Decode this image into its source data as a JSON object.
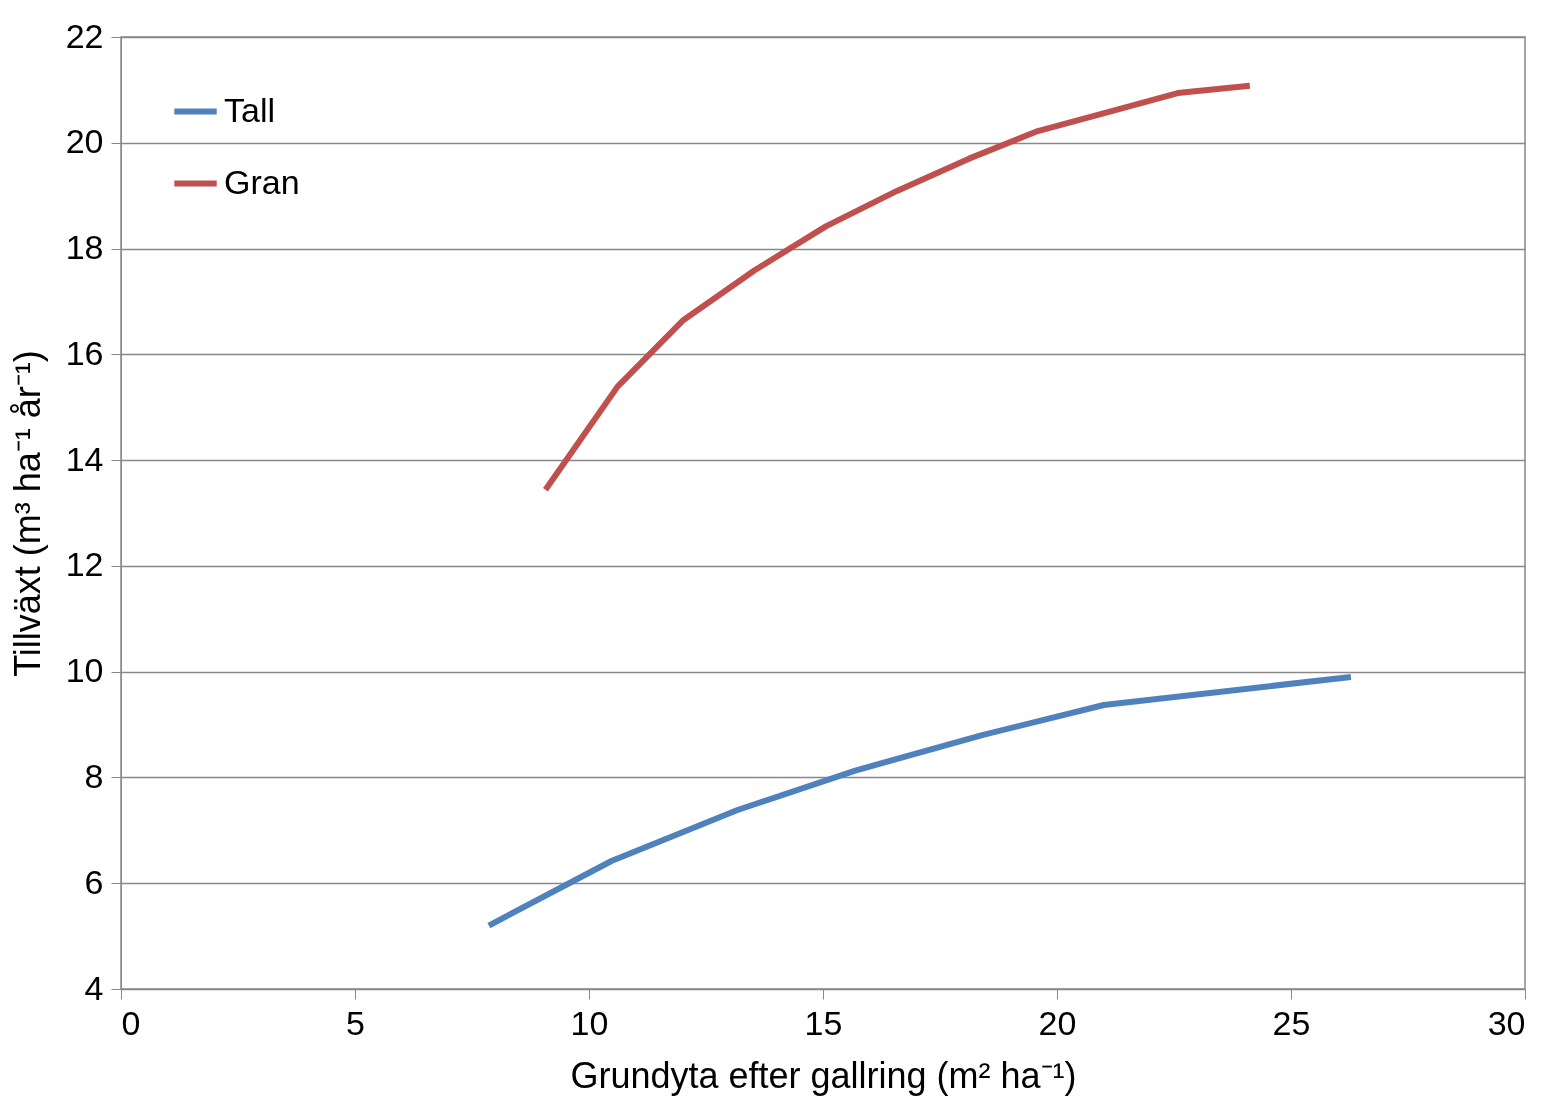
{
  "chart_data": {
    "type": "line",
    "xlabel": "Grundyta efter gallring (m² ha⁻¹)",
    "ylabel": "Tillväxt (m³ ha⁻¹ år⁻¹)",
    "xlim": [
      0,
      30
    ],
    "xticks": [
      0,
      5,
      10,
      15,
      20,
      25,
      30
    ],
    "ylim": [
      4,
      22
    ],
    "yticks": [
      4,
      6,
      8,
      10,
      12,
      14,
      16,
      18,
      20,
      22
    ],
    "grid": "y",
    "legend": "top left",
    "marker": "none",
    "line_style": "solid",
    "series": [
      {
        "name": "Tall",
        "color": "#4f81bd",
        "x": [
          7.86,
          10.48,
          13.16,
          15.69,
          18.4,
          21.0,
          26.28
        ],
        "values": [
          5.2,
          6.42,
          7.38,
          8.13,
          8.8,
          9.37,
          9.9
        ]
      },
      {
        "name": "Gran",
        "color": "#c0504d",
        "x": [
          9.07,
          10.61,
          12.02,
          13.54,
          15.06,
          16.58,
          18.12,
          19.55,
          21.09,
          22.58,
          24.12
        ],
        "values": [
          13.44,
          15.39,
          16.65,
          17.59,
          18.42,
          19.09,
          19.7,
          20.21,
          20.58,
          20.94,
          21.08
        ]
      }
    ]
  }
}
